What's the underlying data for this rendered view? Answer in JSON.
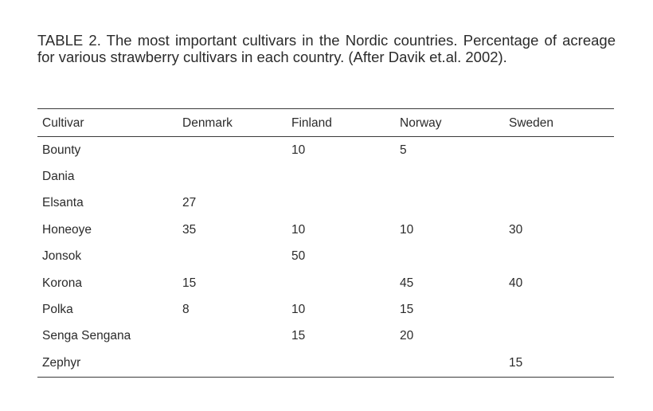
{
  "caption": "TABLE 2. The most important cultivars in the Nordic countries. Percentage of acreage for various strawberry cultivars in each country. (After Davik et.al. 2002).",
  "table": {
    "headers": [
      "Cultivar",
      "Denmark",
      "Finland",
      "Norway",
      "Sweden"
    ],
    "rows": [
      [
        "Bounty",
        "",
        "10",
        "5",
        ""
      ],
      [
        "Dania",
        "",
        "",
        "",
        ""
      ],
      [
        "Elsanta",
        "27",
        "",
        "",
        ""
      ],
      [
        "Honeoye",
        "35",
        "10",
        "10",
        "30"
      ],
      [
        "Jonsok",
        "",
        "50",
        "",
        ""
      ],
      [
        "Korona",
        "15",
        "",
        "45",
        "40"
      ],
      [
        "Polka",
        "8",
        "10",
        "15",
        ""
      ],
      [
        "Senga Sengana",
        "",
        "15",
        "20",
        ""
      ],
      [
        "Zephyr",
        "",
        "",
        "",
        "15"
      ]
    ]
  }
}
